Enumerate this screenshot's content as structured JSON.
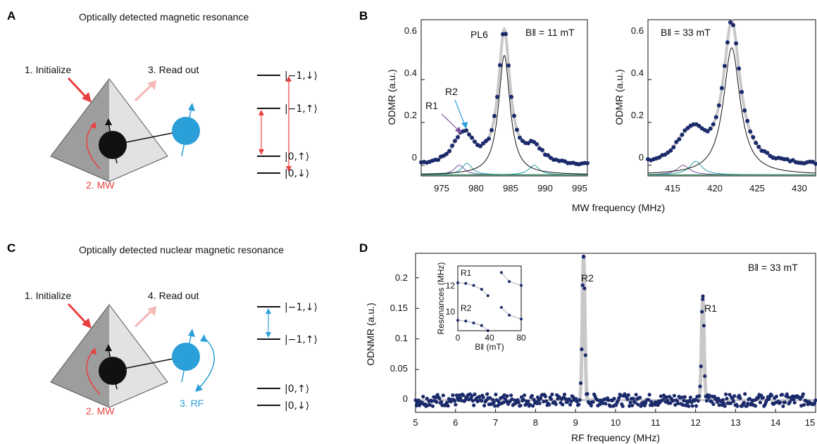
{
  "panels": {
    "A": {
      "letter": "A",
      "title": "Optically detected magnetic resonance",
      "step1": "1. Initialize",
      "step2": "2. MW",
      "step3": "3. Read out",
      "levels": [
        "|−1,↓⟩",
        "|−1,↑⟩",
        "|0,↑⟩",
        "|0,↓⟩"
      ]
    },
    "B": {
      "letter": "B",
      "xlabel": "MW frequency (MHz)",
      "ylabel": "ODMR (a.u.)",
      "left_field": "B‖ = 11 mT",
      "right_field": "B‖ = 33 mT",
      "peak_label": "PL6",
      "r1": "R1",
      "r2": "R2",
      "left_xticks": [
        "975",
        "980",
        "985",
        "990",
        "995"
      ],
      "right_xticks": [
        "415",
        "420",
        "425",
        "430"
      ],
      "yticks": [
        "0",
        "0.2",
        "0.4",
        "0.6"
      ]
    },
    "C": {
      "letter": "C",
      "title": "Optically detected nuclear magnetic resonance",
      "step1": "1. Initialize",
      "step2": "2. MW",
      "step3": "3. RF",
      "step4": "4. Read out",
      "levels": [
        "|−1,↓⟩",
        "|−1,↑⟩",
        "|0,↑⟩",
        "|0,↓⟩"
      ]
    },
    "D": {
      "letter": "D",
      "xlabel": "RF frequency (MHz)",
      "ylabel": "ODNMR (a.u.)",
      "field": "B‖ = 33 mT",
      "r1": "R1",
      "r2": "R2",
      "xticks": [
        "5",
        "6",
        "7",
        "8",
        "9",
        "10",
        "11",
        "12",
        "13",
        "14",
        "15"
      ],
      "yticks": [
        "0",
        "0.05",
        "0.1",
        "0.15",
        "0.2"
      ],
      "inset": {
        "ylabel": "Resonances (MHz)",
        "xlabel": "B‖ (mT)",
        "xticks": [
          "0",
          "40",
          "80"
        ],
        "yticks": [
          "10",
          "12"
        ],
        "r1": "R1",
        "r2": "R2"
      }
    }
  },
  "colors": {
    "data": "#1b2a6b",
    "fit": "#c8c8c8",
    "red": "#e8403f",
    "blue": "#2a9fd8",
    "purple": "#7a4f9e",
    "teal": "#2aa0a8",
    "green": "#2e8b57"
  },
  "chart_data": [
    {
      "type": "scatter",
      "panel": "B-left",
      "xlabel": "MW frequency (MHz)",
      "ylabel": "ODMR (a.u.)",
      "xlim": [
        972,
        996
      ],
      "ylim": [
        -0.05,
        0.68
      ],
      "annotation": "B‖ = 11 mT",
      "peaks": [
        {
          "name": "PL6",
          "center": 984,
          "amplitude": 0.62,
          "width": 1.0
        },
        {
          "name": "R1",
          "center": 977.5,
          "amplitude": 0.1
        },
        {
          "name": "R2",
          "center": 978.6,
          "amplitude": 0.12
        },
        {
          "center": 988.3,
          "amplitude": 0.1
        }
      ]
    },
    {
      "type": "scatter",
      "panel": "B-right",
      "xlabel": "MW frequency (MHz)",
      "ylabel": "ODMR (a.u.)",
      "xlim": [
        411,
        431
      ],
      "ylim": [
        -0.05,
        0.68
      ],
      "annotation": "B‖ = 33 mT",
      "peaks": [
        {
          "center": 421,
          "amplitude": 0.66,
          "width": 1.2
        },
        {
          "name": "R1",
          "center": 415.2,
          "amplitude": 0.1
        },
        {
          "name": "R2",
          "center": 416.7,
          "amplitude": 0.14
        }
      ]
    },
    {
      "type": "scatter",
      "panel": "D",
      "xlabel": "RF frequency (MHz)",
      "ylabel": "ODNMR (a.u.)",
      "xlim": [
        5,
        15
      ],
      "ylim": [
        -0.02,
        0.24
      ],
      "annotation": "B‖ = 33 mT",
      "peaks": [
        {
          "name": "R2",
          "x": 9.2,
          "y": 0.235
        },
        {
          "name": "R1",
          "x": 12.18,
          "y": 0.165
        }
      ],
      "noise_level": 0.01
    },
    {
      "type": "scatter",
      "panel": "D-inset",
      "xlabel": "B‖ (mT)",
      "ylabel": "Resonances (MHz)",
      "xlim": [
        0,
        80
      ],
      "ylim": [
        8.5,
        13.5
      ],
      "series": [
        {
          "name": "R1",
          "x": [
            0,
            10,
            20,
            30,
            38,
            55,
            65,
            80
          ],
          "values": [
            12.2,
            12.15,
            12.0,
            11.7,
            11.2,
            13.0,
            12.3,
            12.0
          ]
        },
        {
          "name": "R2",
          "x": [
            0,
            10,
            20,
            30,
            38,
            55,
            65,
            80
          ],
          "values": [
            9.3,
            9.25,
            9.1,
            8.9,
            8.5,
            10.3,
            9.7,
            9.4
          ]
        }
      ]
    }
  ]
}
